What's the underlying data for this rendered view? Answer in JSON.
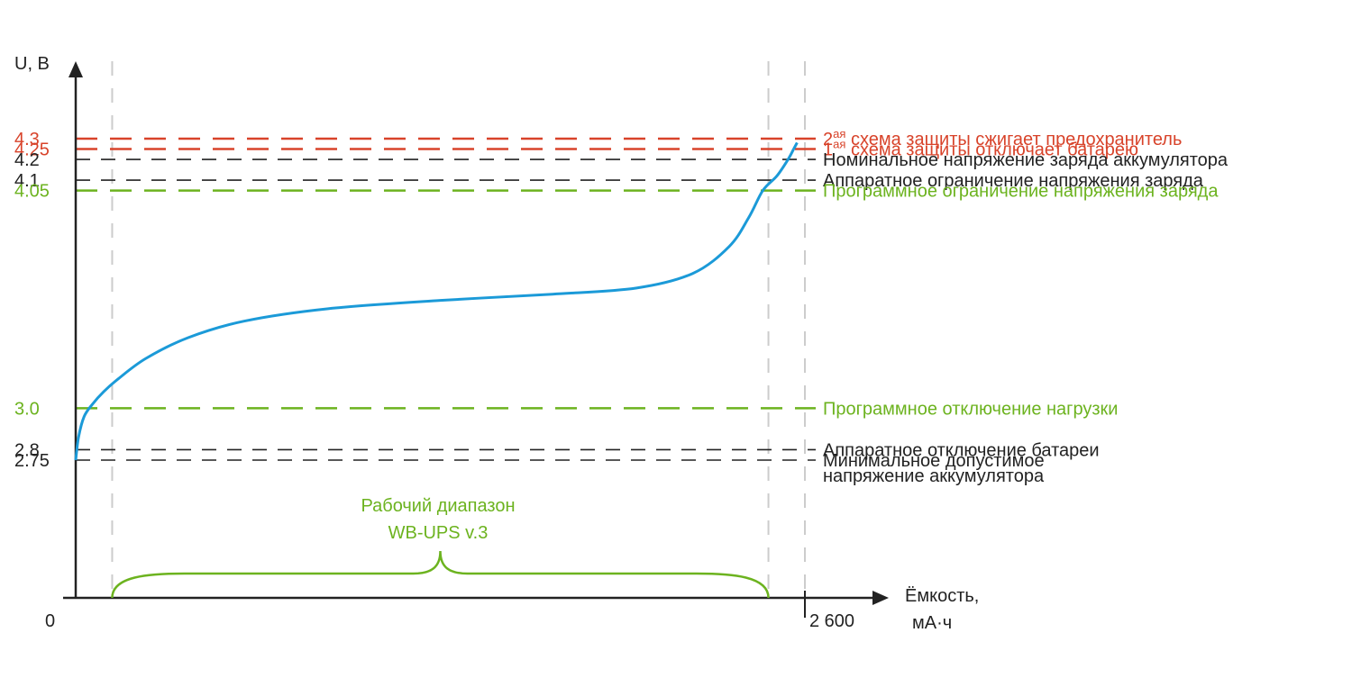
{
  "chart_data": {
    "type": "line",
    "xlabel": "Ёмкость,",
    "xunit": "мА·ч",
    "ylabel": "U, В",
    "x_ticks": [
      "0",
      "2 600"
    ],
    "x_range": [
      0,
      2600
    ],
    "y_range": [
      2.0,
      4.5
    ],
    "colors": {
      "red": "#d8432a",
      "green": "#6cb31f",
      "black": "#222222",
      "blue": "#1b9ad8",
      "grey": "#cccccc"
    },
    "levels": [
      {
        "value": 4.3,
        "tick": "4.3",
        "color": "red",
        "prefix": "2",
        "sup": "ая",
        "text": " схема защиты сжигает предохранитель"
      },
      {
        "value": 4.25,
        "tick": "4.25",
        "color": "red",
        "prefix": "1",
        "sup": "ая",
        "text": " схема защиты отключает батарею"
      },
      {
        "value": 4.2,
        "tick": "4.2",
        "color": "black",
        "prefix": "",
        "sup": "",
        "text": "Номинальное напряжение заряда аккумулятора"
      },
      {
        "value": 4.1,
        "tick": "4.1",
        "color": "black",
        "prefix": "",
        "sup": "",
        "text": "Аппаратное ограничение напряжения заряда"
      },
      {
        "value": 4.05,
        "tick": "4.05",
        "color": "green",
        "prefix": "",
        "sup": "",
        "text": "Программное ограничение напряжения заряда"
      },
      {
        "value": 3.0,
        "tick": "3.0",
        "color": "green",
        "prefix": "",
        "sup": "",
        "text": "Программное отключение нагрузки"
      },
      {
        "value": 2.8,
        "tick": "2.8",
        "color": "black",
        "prefix": "",
        "sup": "",
        "text": "Аппаратное отключение батареи"
      },
      {
        "value": 2.75,
        "tick": "2.75",
        "color": "black",
        "prefix": "",
        "sup": "",
        "text": "Минимальное допустимое",
        "text2": "напряжение аккумулятора"
      }
    ],
    "series": [
      {
        "points": [
          [
            0,
            2.75
          ],
          [
            10,
            2.86
          ],
          [
            30,
            2.96
          ],
          [
            60,
            3.02
          ],
          [
            100,
            3.08
          ],
          [
            150,
            3.14
          ],
          [
            250,
            3.24
          ],
          [
            400,
            3.34
          ],
          [
            600,
            3.42
          ],
          [
            900,
            3.48
          ],
          [
            1300,
            3.52
          ],
          [
            1700,
            3.55
          ],
          [
            2000,
            3.58
          ],
          [
            2200,
            3.65
          ],
          [
            2330,
            3.78
          ],
          [
            2400,
            3.92
          ],
          [
            2450,
            4.05
          ],
          [
            2500,
            4.12
          ],
          [
            2540,
            4.2
          ],
          [
            2560,
            4.25
          ],
          [
            2580,
            4.3
          ]
        ],
        "dashed_from_x": 2560
      }
    ],
    "working_range": {
      "label_line1": "Рабочий диапазон",
      "label_line2": "WB-UPS v.3",
      "from_x": 130,
      "to_x": 2470
    },
    "guide_lines_x": [
      130,
      2470,
      2600
    ]
  }
}
